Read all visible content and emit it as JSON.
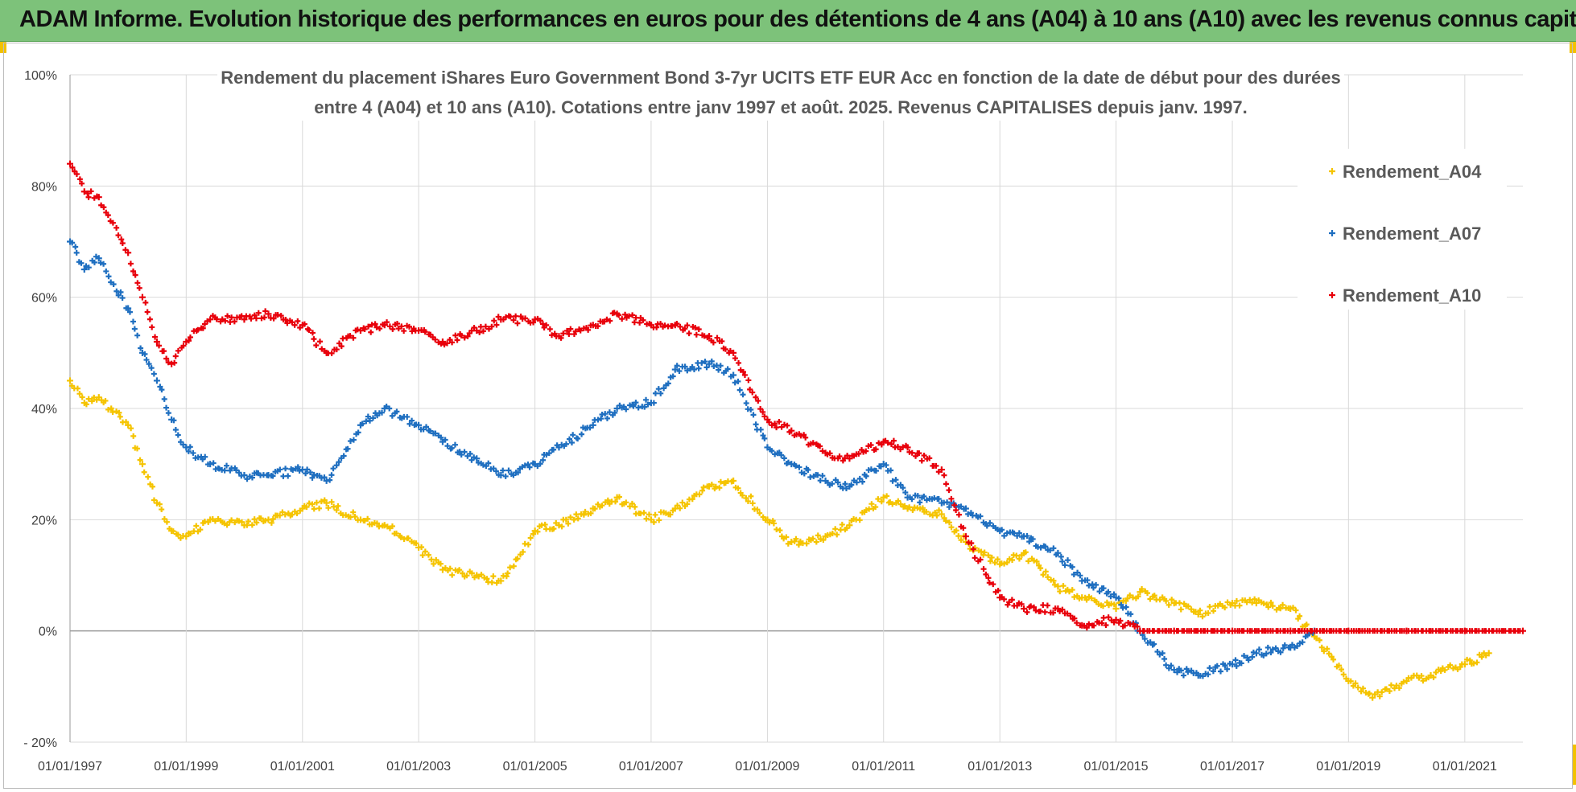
{
  "banner": {
    "title": "ADAM Informe. Evolution historique des performances en euros pour des détentions de 4 ans (A04) à 10 ans (A10) avec les revenus connus capitalisés"
  },
  "colors": {
    "banner_bg": "#7dc27a",
    "A04": "#f5c400",
    "A07": "#1f6fc0",
    "A10": "#e8000b",
    "grid": "#d9d9d9"
  },
  "chart_data": {
    "type": "scatter",
    "title_line1": "Rendement du placement iShares Euro Government Bond 3-7yr  UCITS ETF EUR Acc en fonction de la date de début pour des durées",
    "title_line2": "entre 4 (A04) et 10 ans (A10).  Cotations entre janv 1997 et août. 2025. Revenus CAPITALISES depuis janv. 1997.",
    "xlabel": "",
    "ylabel": "",
    "xlim": [
      "1997-01-01",
      "2022-01-01"
    ],
    "ylim": [
      -20,
      100
    ],
    "y_ticks": [
      -20,
      0,
      20,
      40,
      60,
      80,
      100
    ],
    "y_tick_labels": [
      "- 20%",
      "0%",
      "20%",
      "40%",
      "60%",
      "80%",
      "100%"
    ],
    "x_ticks": [
      "1997-01-01",
      "1999-01-01",
      "2001-01-01",
      "2003-01-01",
      "2005-01-01",
      "2007-01-01",
      "2009-01-01",
      "2011-01-01",
      "2013-01-01",
      "2015-01-01",
      "2017-01-01",
      "2019-01-01",
      "2021-01-01"
    ],
    "x_tick_labels": [
      "01/01/1997",
      "01/01/1999",
      "01/01/2001",
      "01/01/2003",
      "01/01/2005",
      "01/01/2007",
      "01/01/2009",
      "01/01/2011",
      "01/01/2013",
      "01/01/2015",
      "01/01/2017",
      "01/01/2019",
      "01/01/2021"
    ],
    "grid": true,
    "legend_position": "right",
    "marker": "+",
    "series": [
      {
        "name": "Rendement_A04",
        "color": "#f5c400",
        "points": [
          [
            "1997-01-01",
            45
          ],
          [
            "1997-04-01",
            41
          ],
          [
            "1997-07-01",
            42
          ],
          [
            "1998-01-01",
            37
          ],
          [
            "1998-04-01",
            30
          ],
          [
            "1998-07-01",
            23
          ],
          [
            "1998-10-01",
            18
          ],
          [
            "1999-01-01",
            17
          ],
          [
            "1999-06-01",
            20
          ],
          [
            "2000-01-01",
            19
          ],
          [
            "2000-06-01",
            20
          ],
          [
            "2001-01-01",
            22
          ],
          [
            "2001-06-01",
            23
          ],
          [
            "2002-01-01",
            20
          ],
          [
            "2002-06-01",
            19
          ],
          [
            "2003-01-01",
            15
          ],
          [
            "2003-06-01",
            11
          ],
          [
            "2004-01-01",
            10
          ],
          [
            "2004-06-01",
            9
          ],
          [
            "2005-01-01",
            18
          ],
          [
            "2005-06-01",
            19
          ],
          [
            "2006-01-01",
            22
          ],
          [
            "2006-06-01",
            24
          ],
          [
            "2007-01-01",
            20
          ],
          [
            "2007-06-01",
            22
          ],
          [
            "2008-01-01",
            26
          ],
          [
            "2008-06-01",
            27
          ],
          [
            "2009-01-01",
            20
          ],
          [
            "2009-06-01",
            16
          ],
          [
            "2010-01-01",
            17
          ],
          [
            "2010-06-01",
            19
          ],
          [
            "2011-01-01",
            24
          ],
          [
            "2011-06-01",
            22
          ],
          [
            "2012-01-01",
            21
          ],
          [
            "2012-06-01",
            16
          ],
          [
            "2013-01-01",
            12
          ],
          [
            "2013-06-01",
            14
          ],
          [
            "2014-01-01",
            8
          ],
          [
            "2014-06-01",
            6
          ],
          [
            "2015-01-01",
            4
          ],
          [
            "2015-06-01",
            7
          ],
          [
            "2016-01-01",
            5
          ],
          [
            "2016-06-01",
            3
          ],
          [
            "2017-01-01",
            5
          ],
          [
            "2017-06-01",
            5
          ],
          [
            "2018-01-01",
            4
          ],
          [
            "2018-06-01",
            -1
          ],
          [
            "2019-01-01",
            -9
          ],
          [
            "2019-06-01",
            -12
          ],
          [
            "2020-01-01",
            -9
          ],
          [
            "2020-06-01",
            -8
          ],
          [
            "2021-01-01",
            -6
          ],
          [
            "2021-06-01",
            -4
          ]
        ]
      },
      {
        "name": "Rendement_A07",
        "color": "#1f6fc0",
        "points": [
          [
            "1997-01-01",
            70
          ],
          [
            "1997-04-01",
            65
          ],
          [
            "1997-07-01",
            67
          ],
          [
            "1998-01-01",
            58
          ],
          [
            "1998-04-01",
            50
          ],
          [
            "1998-07-01",
            45
          ],
          [
            "1998-10-01",
            38
          ],
          [
            "1999-01-01",
            33
          ],
          [
            "1999-06-01",
            30
          ],
          [
            "2000-01-01",
            28
          ],
          [
            "2000-06-01",
            28
          ],
          [
            "2001-01-01",
            29
          ],
          [
            "2001-06-01",
            27
          ],
          [
            "2002-01-01",
            37
          ],
          [
            "2002-06-01",
            40
          ],
          [
            "2003-01-01",
            37
          ],
          [
            "2003-06-01",
            34
          ],
          [
            "2004-01-01",
            31
          ],
          [
            "2004-06-01",
            28
          ],
          [
            "2005-01-01",
            30
          ],
          [
            "2005-06-01",
            33
          ],
          [
            "2006-01-01",
            37
          ],
          [
            "2006-06-01",
            40
          ],
          [
            "2007-01-01",
            41
          ],
          [
            "2007-06-01",
            47
          ],
          [
            "2008-01-01",
            48
          ],
          [
            "2008-06-01",
            46
          ],
          [
            "2009-01-01",
            33
          ],
          [
            "2009-06-01",
            30
          ],
          [
            "2010-01-01",
            27
          ],
          [
            "2010-06-01",
            26
          ],
          [
            "2011-01-01",
            30
          ],
          [
            "2011-06-01",
            24
          ],
          [
            "2012-01-01",
            23
          ],
          [
            "2012-06-01",
            22
          ],
          [
            "2013-01-01",
            18
          ],
          [
            "2013-06-01",
            17
          ],
          [
            "2014-01-01",
            14
          ],
          [
            "2014-06-01",
            9
          ],
          [
            "2015-01-01",
            6
          ],
          [
            "2015-06-01",
            0
          ],
          [
            "2016-01-01",
            -7
          ],
          [
            "2016-06-01",
            -8
          ],
          [
            "2017-01-01",
            -6
          ],
          [
            "2017-06-01",
            -4
          ],
          [
            "2018-01-01",
            -3
          ],
          [
            "2018-06-01",
            0
          ]
        ]
      },
      {
        "name": "Rendement_A10",
        "color": "#e8000b",
        "points": [
          [
            "1997-01-01",
            84
          ],
          [
            "1997-04-01",
            79
          ],
          [
            "1997-07-01",
            78
          ],
          [
            "1998-01-01",
            68
          ],
          [
            "1998-04-01",
            60
          ],
          [
            "1998-07-01",
            52
          ],
          [
            "1998-10-01",
            48
          ],
          [
            "1999-01-01",
            52
          ],
          [
            "1999-06-01",
            56
          ],
          [
            "2000-01-01",
            56
          ],
          [
            "2000-06-01",
            57
          ],
          [
            "2001-01-01",
            55
          ],
          [
            "2001-06-01",
            50
          ],
          [
            "2002-01-01",
            54
          ],
          [
            "2002-06-01",
            55
          ],
          [
            "2003-01-01",
            54
          ],
          [
            "2003-06-01",
            52
          ],
          [
            "2004-01-01",
            54
          ],
          [
            "2004-06-01",
            56
          ],
          [
            "2005-01-01",
            56
          ],
          [
            "2005-06-01",
            53
          ],
          [
            "2006-01-01",
            55
          ],
          [
            "2006-06-01",
            57
          ],
          [
            "2007-01-01",
            55
          ],
          [
            "2007-06-01",
            55
          ],
          [
            "2008-01-01",
            53
          ],
          [
            "2008-06-01",
            50
          ],
          [
            "2009-01-01",
            38
          ],
          [
            "2009-06-01",
            36
          ],
          [
            "2010-01-01",
            32
          ],
          [
            "2010-06-01",
            31
          ],
          [
            "2011-01-01",
            34
          ],
          [
            "2011-06-01",
            33
          ],
          [
            "2012-01-01",
            29
          ],
          [
            "2012-06-01",
            17
          ],
          [
            "2013-01-01",
            6
          ],
          [
            "2013-06-01",
            4
          ],
          [
            "2014-01-01",
            4
          ],
          [
            "2014-06-01",
            1
          ],
          [
            "2015-01-01",
            2
          ],
          [
            "2015-06-01",
            0
          ],
          [
            "2016-01-01",
            0
          ],
          [
            "2017-01-01",
            0
          ],
          [
            "2018-01-01",
            0
          ],
          [
            "2019-01-01",
            0
          ],
          [
            "2020-01-01",
            0
          ],
          [
            "2021-01-01",
            0
          ],
          [
            "2022-01-01",
            0
          ]
        ]
      }
    ]
  }
}
